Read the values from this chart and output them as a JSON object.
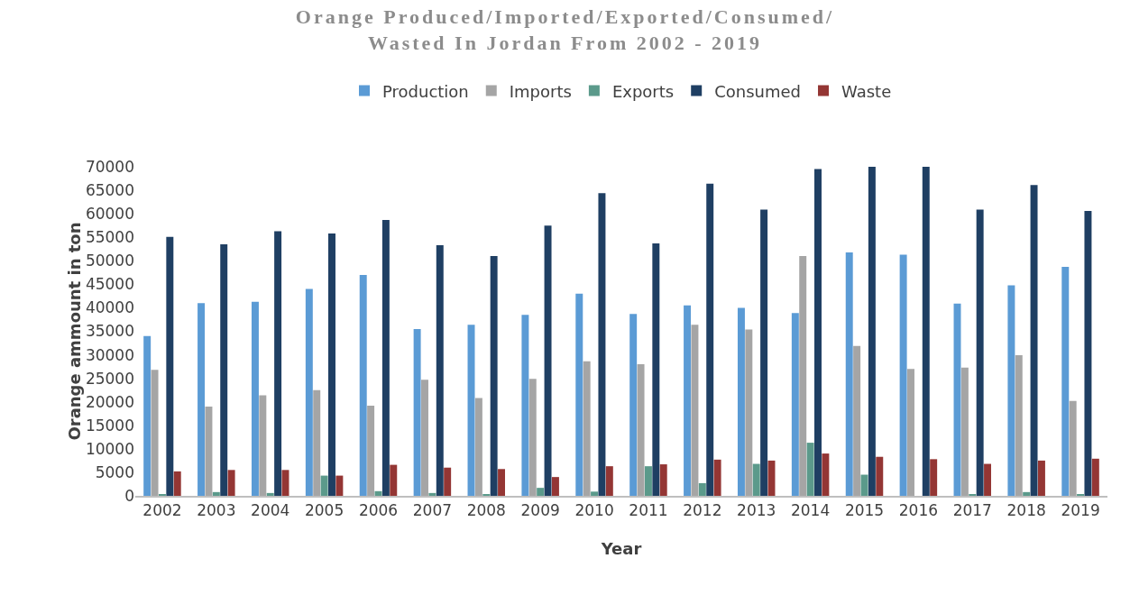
{
  "chart_data": {
    "type": "bar",
    "title": "Orange Produced/Imported/Exported/Consumed/ Wasted In Jordan From 2002 - 2019",
    "xlabel": "Year",
    "ylabel": "Orange ammount in ton",
    "categories": [
      "2002",
      "2003",
      "2004",
      "2005",
      "2006",
      "2007",
      "2008",
      "2009",
      "2010",
      "2011",
      "2012",
      "2013",
      "2014",
      "2015",
      "2016",
      "2017",
      "2018",
      "2019"
    ],
    "series": [
      {
        "name": "Production",
        "color": "#5b9bd5",
        "values": [
          34000,
          41000,
          41300,
          44000,
          47000,
          35500,
          36400,
          38500,
          43000,
          38700,
          40500,
          40000,
          38900,
          51800,
          51300,
          40900,
          44800,
          48700
        ]
      },
      {
        "name": "Imports",
        "color": "#a5a5a5",
        "values": [
          26800,
          19000,
          21400,
          22500,
          19200,
          24700,
          20800,
          24900,
          28600,
          28000,
          36400,
          35400,
          51000,
          31900,
          27000,
          27300,
          29900,
          20200
        ]
      },
      {
        "name": "Exports",
        "color": "#5b9a8b",
        "values": [
          200,
          800,
          600,
          4300,
          1000,
          600,
          200,
          1700,
          900,
          6300,
          2700,
          6800,
          11300,
          4500,
          0,
          200,
          800,
          200
        ]
      },
      {
        "name": "Consumed",
        "color": "#1f3f63",
        "values": [
          55100,
          53500,
          56300,
          55800,
          58700,
          53300,
          51000,
          57500,
          64400,
          53700,
          66400,
          60900,
          69500,
          70000,
          70000,
          60900,
          66100,
          60600
        ]
      },
      {
        "name": "Waste",
        "color": "#943634",
        "values": [
          5200,
          5500,
          5500,
          4300,
          6600,
          6000,
          5700,
          4000,
          6300,
          6700,
          7700,
          7500,
          9000,
          8300,
          7800,
          6800,
          7500,
          7900
        ]
      }
    ],
    "ylim": [
      0,
      70000
    ],
    "yticks": [
      0,
      5000,
      10000,
      15000,
      20000,
      25000,
      30000,
      35000,
      40000,
      45000,
      50000,
      55000,
      60000,
      65000,
      70000
    ],
    "grid": false,
    "legend": "top"
  }
}
